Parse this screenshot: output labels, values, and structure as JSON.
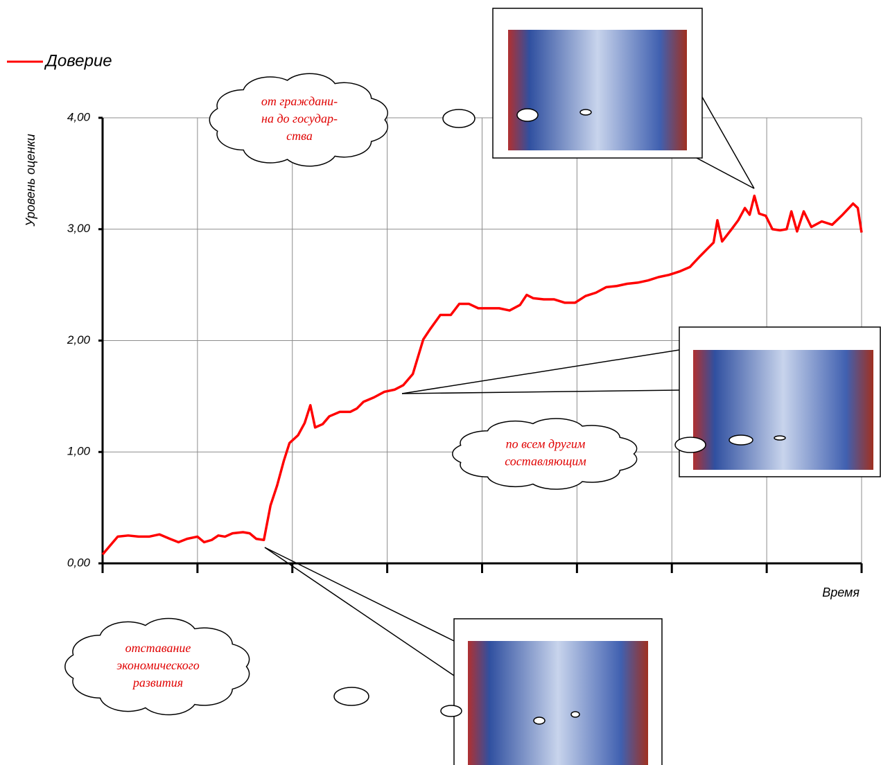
{
  "chart_data": {
    "type": "line",
    "legend": "top-left",
    "y_label": "Уровень оценки",
    "x_label": "Время",
    "ylim": [
      0,
      4
    ],
    "yticks": [
      {
        "value": 0,
        "label": "0,00"
      },
      {
        "value": 1,
        "label": "1,00"
      },
      {
        "value": 2,
        "label": "2,00"
      },
      {
        "value": 3,
        "label": "3,00"
      },
      {
        "value": 4,
        "label": "4,00"
      }
    ],
    "xlim": [
      0,
      8
    ],
    "grid": true,
    "x": [
      0,
      0.09,
      0.16,
      0.27,
      0.38,
      0.49,
      0.6,
      0.71,
      0.8,
      0.89,
      1.0,
      1.07,
      1.15,
      1.22,
      1.29,
      1.37,
      1.48,
      1.55,
      1.62,
      1.7,
      1.77,
      1.84,
      1.91,
      1.97,
      2.06,
      2.13,
      2.19,
      2.24,
      2.32,
      2.39,
      2.5,
      2.61,
      2.68,
      2.75,
      2.86,
      2.97,
      3.08,
      3.17,
      3.27,
      3.38,
      3.45,
      3.56,
      3.67,
      3.76,
      3.86,
      3.96,
      4.07,
      4.18,
      4.29,
      4.4,
      4.47,
      4.54,
      4.65,
      4.76,
      4.87,
      4.98,
      5.09,
      5.2,
      5.31,
      5.42,
      5.53,
      5.64,
      5.75,
      5.86,
      5.97,
      6.08,
      6.19,
      6.3,
      6.37,
      6.44,
      6.48,
      6.53,
      6.63,
      6.7,
      6.77,
      6.82,
      6.87,
      6.92,
      6.99,
      7.06,
      7.14,
      7.21,
      7.26,
      7.32,
      7.39,
      7.47,
      7.58,
      7.69,
      7.8,
      7.91,
      7.96,
      8.0
    ],
    "series": [
      {
        "name": "Доверие",
        "color": "#ff0000",
        "values": [
          0.08,
          0.17,
          0.24,
          0.25,
          0.24,
          0.24,
          0.26,
          0.22,
          0.19,
          0.22,
          0.24,
          0.19,
          0.21,
          0.25,
          0.24,
          0.27,
          0.28,
          0.27,
          0.22,
          0.21,
          0.52,
          0.7,
          0.92,
          1.08,
          1.15,
          1.26,
          1.42,
          1.22,
          1.25,
          1.32,
          1.36,
          1.36,
          1.39,
          1.45,
          1.49,
          1.54,
          1.56,
          1.6,
          1.7,
          2.01,
          2.1,
          2.23,
          2.23,
          2.33,
          2.33,
          2.29,
          2.29,
          2.29,
          2.27,
          2.32,
          2.41,
          2.38,
          2.37,
          2.37,
          2.34,
          2.34,
          2.4,
          2.43,
          2.48,
          2.49,
          2.51,
          2.52,
          2.54,
          2.57,
          2.59,
          2.62,
          2.66,
          2.76,
          2.82,
          2.88,
          3.08,
          2.89,
          3.0,
          3.08,
          3.19,
          3.13,
          3.3,
          3.14,
          3.12,
          3.0,
          2.99,
          3.0,
          3.16,
          2.98,
          3.16,
          3.02,
          3.07,
          3.04,
          3.13,
          3.23,
          3.19,
          2.97
        ]
      }
    ],
    "annotations": [
      [
        "от граждани-",
        "на до государ-",
        "ства"
      ],
      [
        "по всем другим",
        "составляющим"
      ],
      [
        "отставание",
        "экономического",
        "развития"
      ]
    ]
  }
}
